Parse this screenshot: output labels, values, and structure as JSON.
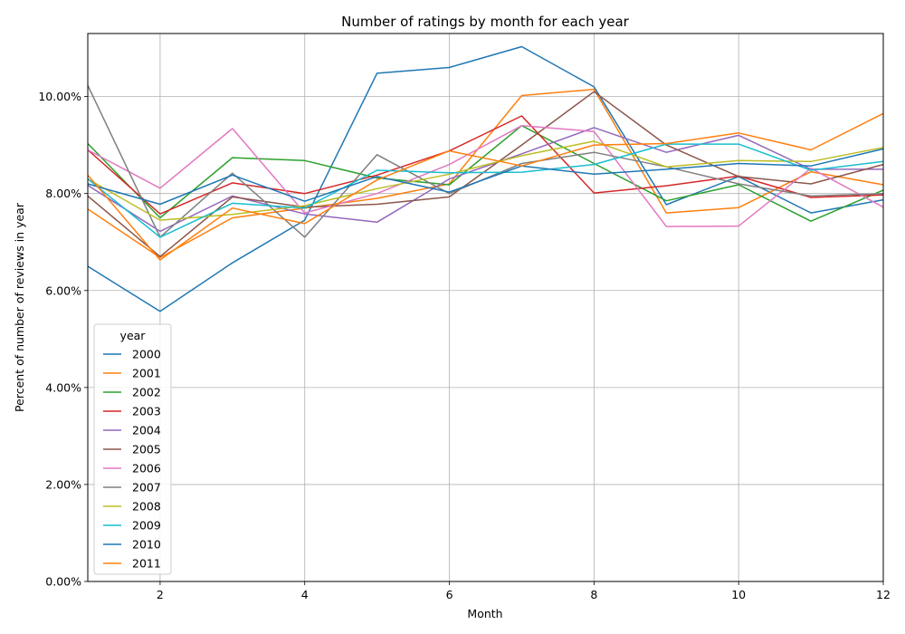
{
  "chart_data": {
    "type": "line",
    "title": "Number of ratings by month for each year",
    "xlabel": "Month",
    "ylabel": "Percent of number of reviews in year",
    "xlim": [
      1,
      12
    ],
    "ylim": [
      0,
      0.113
    ],
    "x_ticks": [
      2,
      4,
      6,
      8,
      10,
      12
    ],
    "x_tick_labels": [
      "2",
      "4",
      "6",
      "8",
      "10",
      "12"
    ],
    "y_ticks": [
      0,
      0.02,
      0.04,
      0.06,
      0.08,
      0.1
    ],
    "y_tick_labels": [
      "0.00%",
      "2.00%",
      "4.00%",
      "6.00%",
      "8.00%",
      "10.00%"
    ],
    "grid": true,
    "legend_title": "year",
    "legend_position": "lower-left",
    "x": [
      1,
      2,
      3,
      4,
      5,
      6,
      7,
      8,
      9,
      10,
      11,
      12
    ],
    "series": [
      {
        "name": "2000",
        "color": "#1f77b4",
        "values": [
          0.065,
          0.0557,
          0.0657,
          0.0745,
          0.1048,
          0.106,
          0.1103,
          0.102,
          0.0777,
          0.0835,
          0.076,
          0.0787
        ]
      },
      {
        "name": "2001",
        "color": "#ff7f0e",
        "values": [
          0.0768,
          0.0668,
          0.075,
          0.077,
          0.079,
          0.082,
          0.1002,
          0.1015,
          0.076,
          0.0771,
          0.0845,
          0.0818
        ]
      },
      {
        "name": "2002",
        "color": "#2ca02c",
        "values": [
          0.0903,
          0.075,
          0.0874,
          0.0868,
          0.0832,
          0.0818,
          0.094,
          0.0862,
          0.0785,
          0.0818,
          0.0743,
          0.0807
        ]
      },
      {
        "name": "2003",
        "color": "#d62728",
        "values": [
          0.089,
          0.0758,
          0.0822,
          0.08,
          0.0838,
          0.0888,
          0.096,
          0.0801,
          0.0816,
          0.0836,
          0.0792,
          0.0797
        ]
      },
      {
        "name": "2004",
        "color": "#9467bd",
        "values": [
          0.0817,
          0.0722,
          0.0795,
          0.0758,
          0.0741,
          0.083,
          0.0882,
          0.0936,
          0.0885,
          0.092,
          0.085,
          0.085
        ]
      },
      {
        "name": "2005",
        "color": "#8c564b",
        "values": [
          0.0795,
          0.067,
          0.0793,
          0.0772,
          0.0778,
          0.0793,
          0.09,
          0.101,
          0.09,
          0.0835,
          0.082,
          0.086
        ]
      },
      {
        "name": "2006",
        "color": "#e377c2",
        "values": [
          0.089,
          0.0811,
          0.0934,
          0.076,
          0.08,
          0.086,
          0.094,
          0.0928,
          0.0732,
          0.0733,
          0.0852,
          0.0772
        ]
      },
      {
        "name": "2007",
        "color": "#7f7f7f",
        "values": [
          0.1023,
          0.071,
          0.0842,
          0.071,
          0.088,
          0.08,
          0.0862,
          0.0885,
          0.0855,
          0.082,
          0.0795,
          0.08
        ]
      },
      {
        "name": "2008",
        "color": "#bcbd22",
        "values": [
          0.083,
          0.0745,
          0.0757,
          0.0775,
          0.081,
          0.084,
          0.0878,
          0.0908,
          0.0855,
          0.0868,
          0.0866,
          0.0895
        ]
      },
      {
        "name": "2009",
        "color": "#17becf",
        "values": [
          0.083,
          0.071,
          0.078,
          0.077,
          0.0848,
          0.0843,
          0.0844,
          0.086,
          0.0902,
          0.0902,
          0.0848,
          0.0866
        ]
      },
      {
        "name": "2010",
        "color": "#1f77b4",
        "values": [
          0.082,
          0.0778,
          0.0838,
          0.0784,
          0.0835,
          0.0803,
          0.0857,
          0.084,
          0.085,
          0.0862,
          0.0857,
          0.0892
        ]
      },
      {
        "name": "2011",
        "color": "#ff7f0e",
        "values": [
          0.0838,
          0.0663,
          0.077,
          0.0738,
          0.0828,
          0.0888,
          0.0857,
          0.09,
          0.0903,
          0.0925,
          0.089,
          0.0965
        ]
      }
    ]
  }
}
